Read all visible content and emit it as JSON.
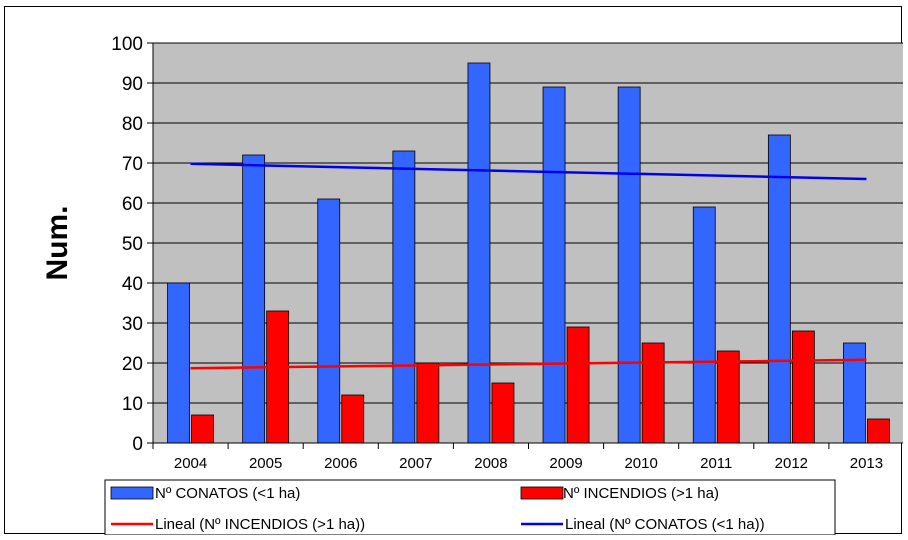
{
  "chart_data": {
    "type": "bar",
    "title": "",
    "xlabel": "",
    "ylabel": "Num.",
    "ylim": [
      0,
      100
    ],
    "yticks": [
      0,
      10,
      20,
      30,
      40,
      50,
      60,
      70,
      80,
      90,
      100
    ],
    "categories": [
      "2004",
      "2005",
      "2006",
      "2007",
      "2008",
      "2009",
      "2010",
      "2011",
      "2012",
      "2013"
    ],
    "grid": true,
    "legend_position": "bottom",
    "plot_background": "#c0c0c0",
    "series": [
      {
        "name": "Nº CONATOS (<1 ha)",
        "color": "#3366ff",
        "values": [
          40,
          72,
          61,
          73,
          95,
          89,
          89,
          59,
          77,
          25
        ]
      },
      {
        "name": "Nº INCENDIOS (>1 ha)",
        "color": "#ff0000",
        "values": [
          7,
          33,
          12,
          20,
          15,
          29,
          25,
          23,
          28,
          6
        ]
      }
    ],
    "trendlines": [
      {
        "name": "Lineal (Nº INCENDIOS (>1 ha))",
        "color": "#ff0000",
        "start": 18.7,
        "end": 20.8
      },
      {
        "name": "Lineal (Nº CONATOS (<1 ha))",
        "color": "#0000ee",
        "start": 69.8,
        "end": 66.0
      }
    ]
  }
}
